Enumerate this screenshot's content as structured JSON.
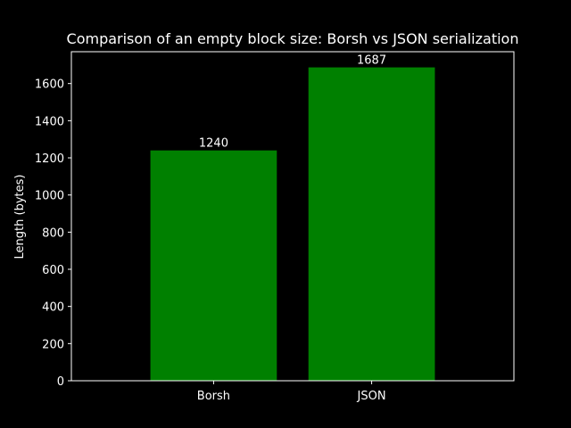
{
  "chart_data": {
    "type": "bar",
    "title": "Comparison of an empty block size: Borsh vs JSON serialization",
    "xlabel": "",
    "ylabel": "Length (bytes)",
    "categories": [
      "Borsh",
      "JSON"
    ],
    "values": [
      1240,
      1687
    ],
    "data_labels": [
      "1240",
      "1687"
    ],
    "ylim": [
      0,
      1771.35
    ],
    "yticks": [
      0,
      200,
      400,
      600,
      800,
      1000,
      1200,
      1400,
      1600
    ],
    "ytick_labels": [
      "0",
      "200",
      "400",
      "600",
      "800",
      "1000",
      "1200",
      "1400",
      "1600"
    ],
    "grid": false,
    "bar_color": "#008000",
    "background_color": "#000000",
    "axis_color": "#ffffff"
  }
}
